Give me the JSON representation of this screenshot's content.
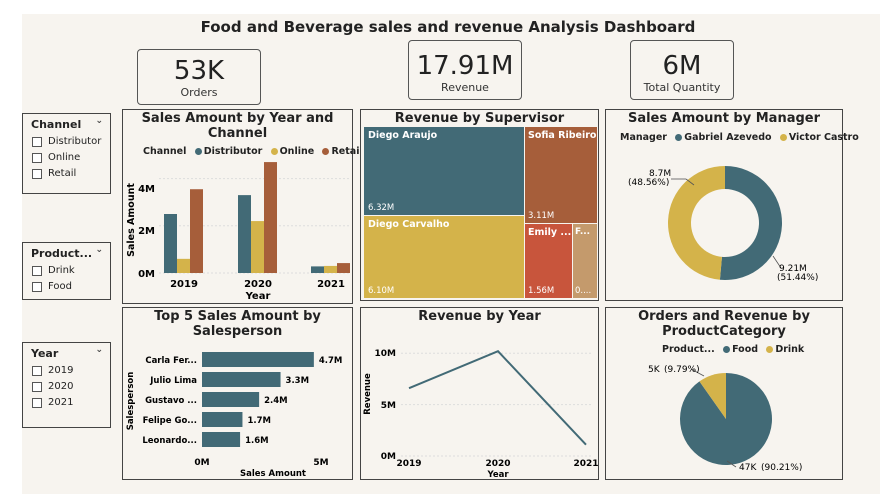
{
  "dashboard_title": "Food and Beverage sales and revenue Analysis Dashboard",
  "kpis": {
    "orders": {
      "value": "53K",
      "label": "Orders"
    },
    "revenue": {
      "value": "17.91M",
      "label": "Revenue"
    },
    "quantity": {
      "value": "6M",
      "label": "Total Quantity"
    }
  },
  "slicers": {
    "channel": {
      "title": "Channel",
      "items": [
        "Distributor",
        "Online",
        "Retail"
      ]
    },
    "product": {
      "title": "Product...",
      "items": [
        "Drink",
        "Food"
      ]
    },
    "year": {
      "title": "Year",
      "items": [
        "2019",
        "2020",
        "2021"
      ]
    }
  },
  "colors": {
    "teal": "#426a76",
    "gold": "#d4b34a",
    "rust": "#a65e3a",
    "red": "#c8553c",
    "tan": "#c49a6c"
  },
  "chart_data": [
    {
      "id": "sales_by_year_channel",
      "type": "bar",
      "title": "Sales Amount by Year and Channel",
      "legend_title": "Channel",
      "categories": [
        "2019",
        "2020",
        "2021"
      ],
      "series": [
        {
          "name": "Distributor",
          "values": [
            2.5,
            3.3,
            0.28
          ]
        },
        {
          "name": "Online",
          "values": [
            0.6,
            2.2,
            0.3
          ]
        },
        {
          "name": "Retail",
          "values": [
            3.55,
            4.7,
            0.42
          ]
        }
      ],
      "xlabel": "Year",
      "ylabel": "Sales Amount",
      "yticks": [
        "0M",
        "2M",
        "4M"
      ],
      "ylim": [
        0,
        5
      ]
    },
    {
      "id": "revenue_by_supervisor",
      "type": "treemap",
      "title": "Revenue by Supervisor",
      "items": [
        {
          "name": "Diego Araujo",
          "value": "6.32M"
        },
        {
          "name": "Diego Carvalho",
          "value": "6.10M"
        },
        {
          "name": "Sofia Ribeiro",
          "value": "3.11M"
        },
        {
          "name": "Emily ...",
          "value": "1.56M"
        },
        {
          "name": "F...",
          "value": "0...."
        }
      ]
    },
    {
      "id": "sales_by_manager",
      "type": "pie",
      "title": "Sales Amount by Manager",
      "legend_title": "Manager",
      "slices": [
        {
          "name": "Gabriel Azevedo",
          "value": 9.21,
          "label": "9.21M",
          "pct": "(51.44%)"
        },
        {
          "name": "Victor Castro",
          "value": 8.7,
          "label": "8.7M",
          "pct": "(48.56%)"
        }
      ]
    },
    {
      "id": "top5_salesperson",
      "type": "bar",
      "title": "Top 5 Sales Amount by Salesperson",
      "categories": [
        "Carla Fer...",
        "Julio Lima",
        "Gustavo ...",
        "Felipe Go...",
        "Leonardo..."
      ],
      "values": [
        4.7,
        3.3,
        2.4,
        1.7,
        1.6
      ],
      "labels": [
        "4.7M",
        "3.3M",
        "2.4M",
        "1.7M",
        "1.6M"
      ],
      "xlabel": "Sales Amount",
      "ylabel": "Salesperson",
      "xticks": [
        "0M",
        "5M"
      ],
      "xlim": [
        0,
        5
      ]
    },
    {
      "id": "revenue_by_year",
      "type": "line",
      "title": "Revenue by Year",
      "x": [
        "2019",
        "2020",
        "2021"
      ],
      "values": [
        6.6,
        10.2,
        1.1
      ],
      "xlabel": "Year",
      "ylabel": "Revenue",
      "yticks": [
        "0M",
        "5M",
        "10M"
      ],
      "ylim": [
        0,
        11
      ]
    },
    {
      "id": "orders_revenue_by_category",
      "type": "pie",
      "title": "Orders and Revenue by ProductCategory",
      "legend_title": "Product...",
      "slices": [
        {
          "name": "Food",
          "value": 90.21,
          "label": "47K",
          "pct": "(90.21%)"
        },
        {
          "name": "Drink",
          "value": 9.79,
          "label": "5K",
          "pct": "(9.79%)"
        }
      ]
    }
  ]
}
